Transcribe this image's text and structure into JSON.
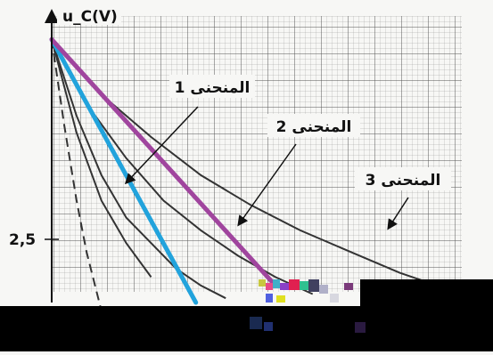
{
  "chart_data": {
    "type": "line",
    "ylabel": "u_C(V)",
    "y_tick_labels": [
      {
        "label": "2,5",
        "value": 2.5
      }
    ],
    "curve_labels": [
      "المنحنى 1",
      "المنحنى 2",
      "المنحنى 3"
    ],
    "curves": [
      {
        "id": "curve-1",
        "label": "المنحنى 1",
        "color": "#333333",
        "points": [
          [
            0,
            5
          ],
          [
            0.1,
            4.1
          ],
          [
            0.2,
            3.4
          ],
          [
            0.3,
            2.9
          ],
          [
            0.4,
            2.6
          ],
          [
            0.5,
            2.3
          ],
          [
            0.6,
            2.1
          ],
          [
            0.7,
            1.95
          ]
        ]
      },
      {
        "id": "curve-2",
        "label": "المنحنى 2",
        "color": "#333333",
        "points": [
          [
            0,
            5
          ],
          [
            0.15,
            4.2
          ],
          [
            0.3,
            3.6
          ],
          [
            0.45,
            3.1
          ],
          [
            0.6,
            2.75
          ],
          [
            0.75,
            2.45
          ],
          [
            0.9,
            2.2
          ],
          [
            1.05,
            2.0
          ]
        ]
      },
      {
        "id": "curve-3",
        "label": "المنحنى 3",
        "color": "#333333",
        "points": [
          [
            0,
            5
          ],
          [
            0.2,
            4.35
          ],
          [
            0.4,
            3.85
          ],
          [
            0.6,
            3.4
          ],
          [
            0.8,
            3.05
          ],
          [
            1.0,
            2.75
          ],
          [
            1.2,
            2.5
          ],
          [
            1.4,
            2.25
          ],
          [
            1.6,
            2.05
          ]
        ]
      },
      {
        "id": "curve-steep",
        "color": "#333333",
        "dashed": true,
        "points": [
          [
            0,
            5
          ],
          [
            0.05,
            4.0
          ],
          [
            0.1,
            3.1
          ],
          [
            0.14,
            2.5
          ],
          [
            0.2,
            1.8
          ]
        ]
      },
      {
        "id": "curve-mid",
        "color": "#333333",
        "points": [
          [
            0,
            5
          ],
          [
            0.1,
            3.9
          ],
          [
            0.2,
            3.1
          ],
          [
            0.3,
            2.6
          ],
          [
            0.4,
            2.2
          ]
        ]
      }
    ],
    "tangents": [
      {
        "id": "tangent-blue",
        "color": "#22a3dc",
        "points": [
          [
            0,
            5
          ],
          [
            0.58,
            1.9
          ]
        ]
      },
      {
        "id": "tangent-purple",
        "color": "#a0459e",
        "points": [
          [
            0,
            5
          ],
          [
            0.9,
            2.1
          ]
        ]
      }
    ],
    "xlim": [
      0,
      1.65
    ],
    "ylim": [
      1.9,
      5.15
    ]
  }
}
